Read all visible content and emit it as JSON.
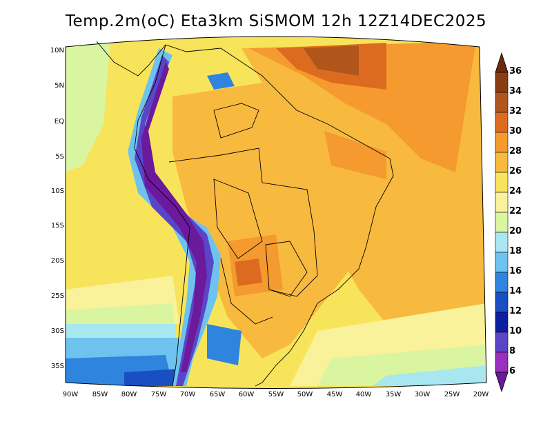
{
  "title": "Temp.2m(oC) Eta3km SiSMOM 12h 12Z14DEC2025",
  "lat_labels": [
    "10N",
    "5N",
    "EQ",
    "5S",
    "10S",
    "15S",
    "20S",
    "25S",
    "30S",
    "35S"
  ],
  "lon_labels": [
    "90W",
    "85W",
    "80W",
    "75W",
    "70W",
    "65W",
    "60W",
    "55W",
    "50W",
    "45W",
    "40W",
    "35W",
    "30W",
    "25W",
    "20W"
  ],
  "colorbar": {
    "labels": [
      "36",
      "34",
      "32",
      "30",
      "28",
      "26",
      "24",
      "22",
      "20",
      "18",
      "16",
      "14",
      "12",
      "10",
      "8",
      "6"
    ],
    "colors": [
      "#6b2a10",
      "#8a3d12",
      "#b0561c",
      "#dd6b1f",
      "#f49a2e",
      "#f8b93f",
      "#f8e45a",
      "#f9f29a",
      "#d9f5a0",
      "#a8e6f0",
      "#6ec3ee",
      "#2f85dd",
      "#1a4fc4",
      "#0d1fa0",
      "#5a45c8",
      "#9a2fc0",
      "#6a1a9a"
    ]
  }
}
